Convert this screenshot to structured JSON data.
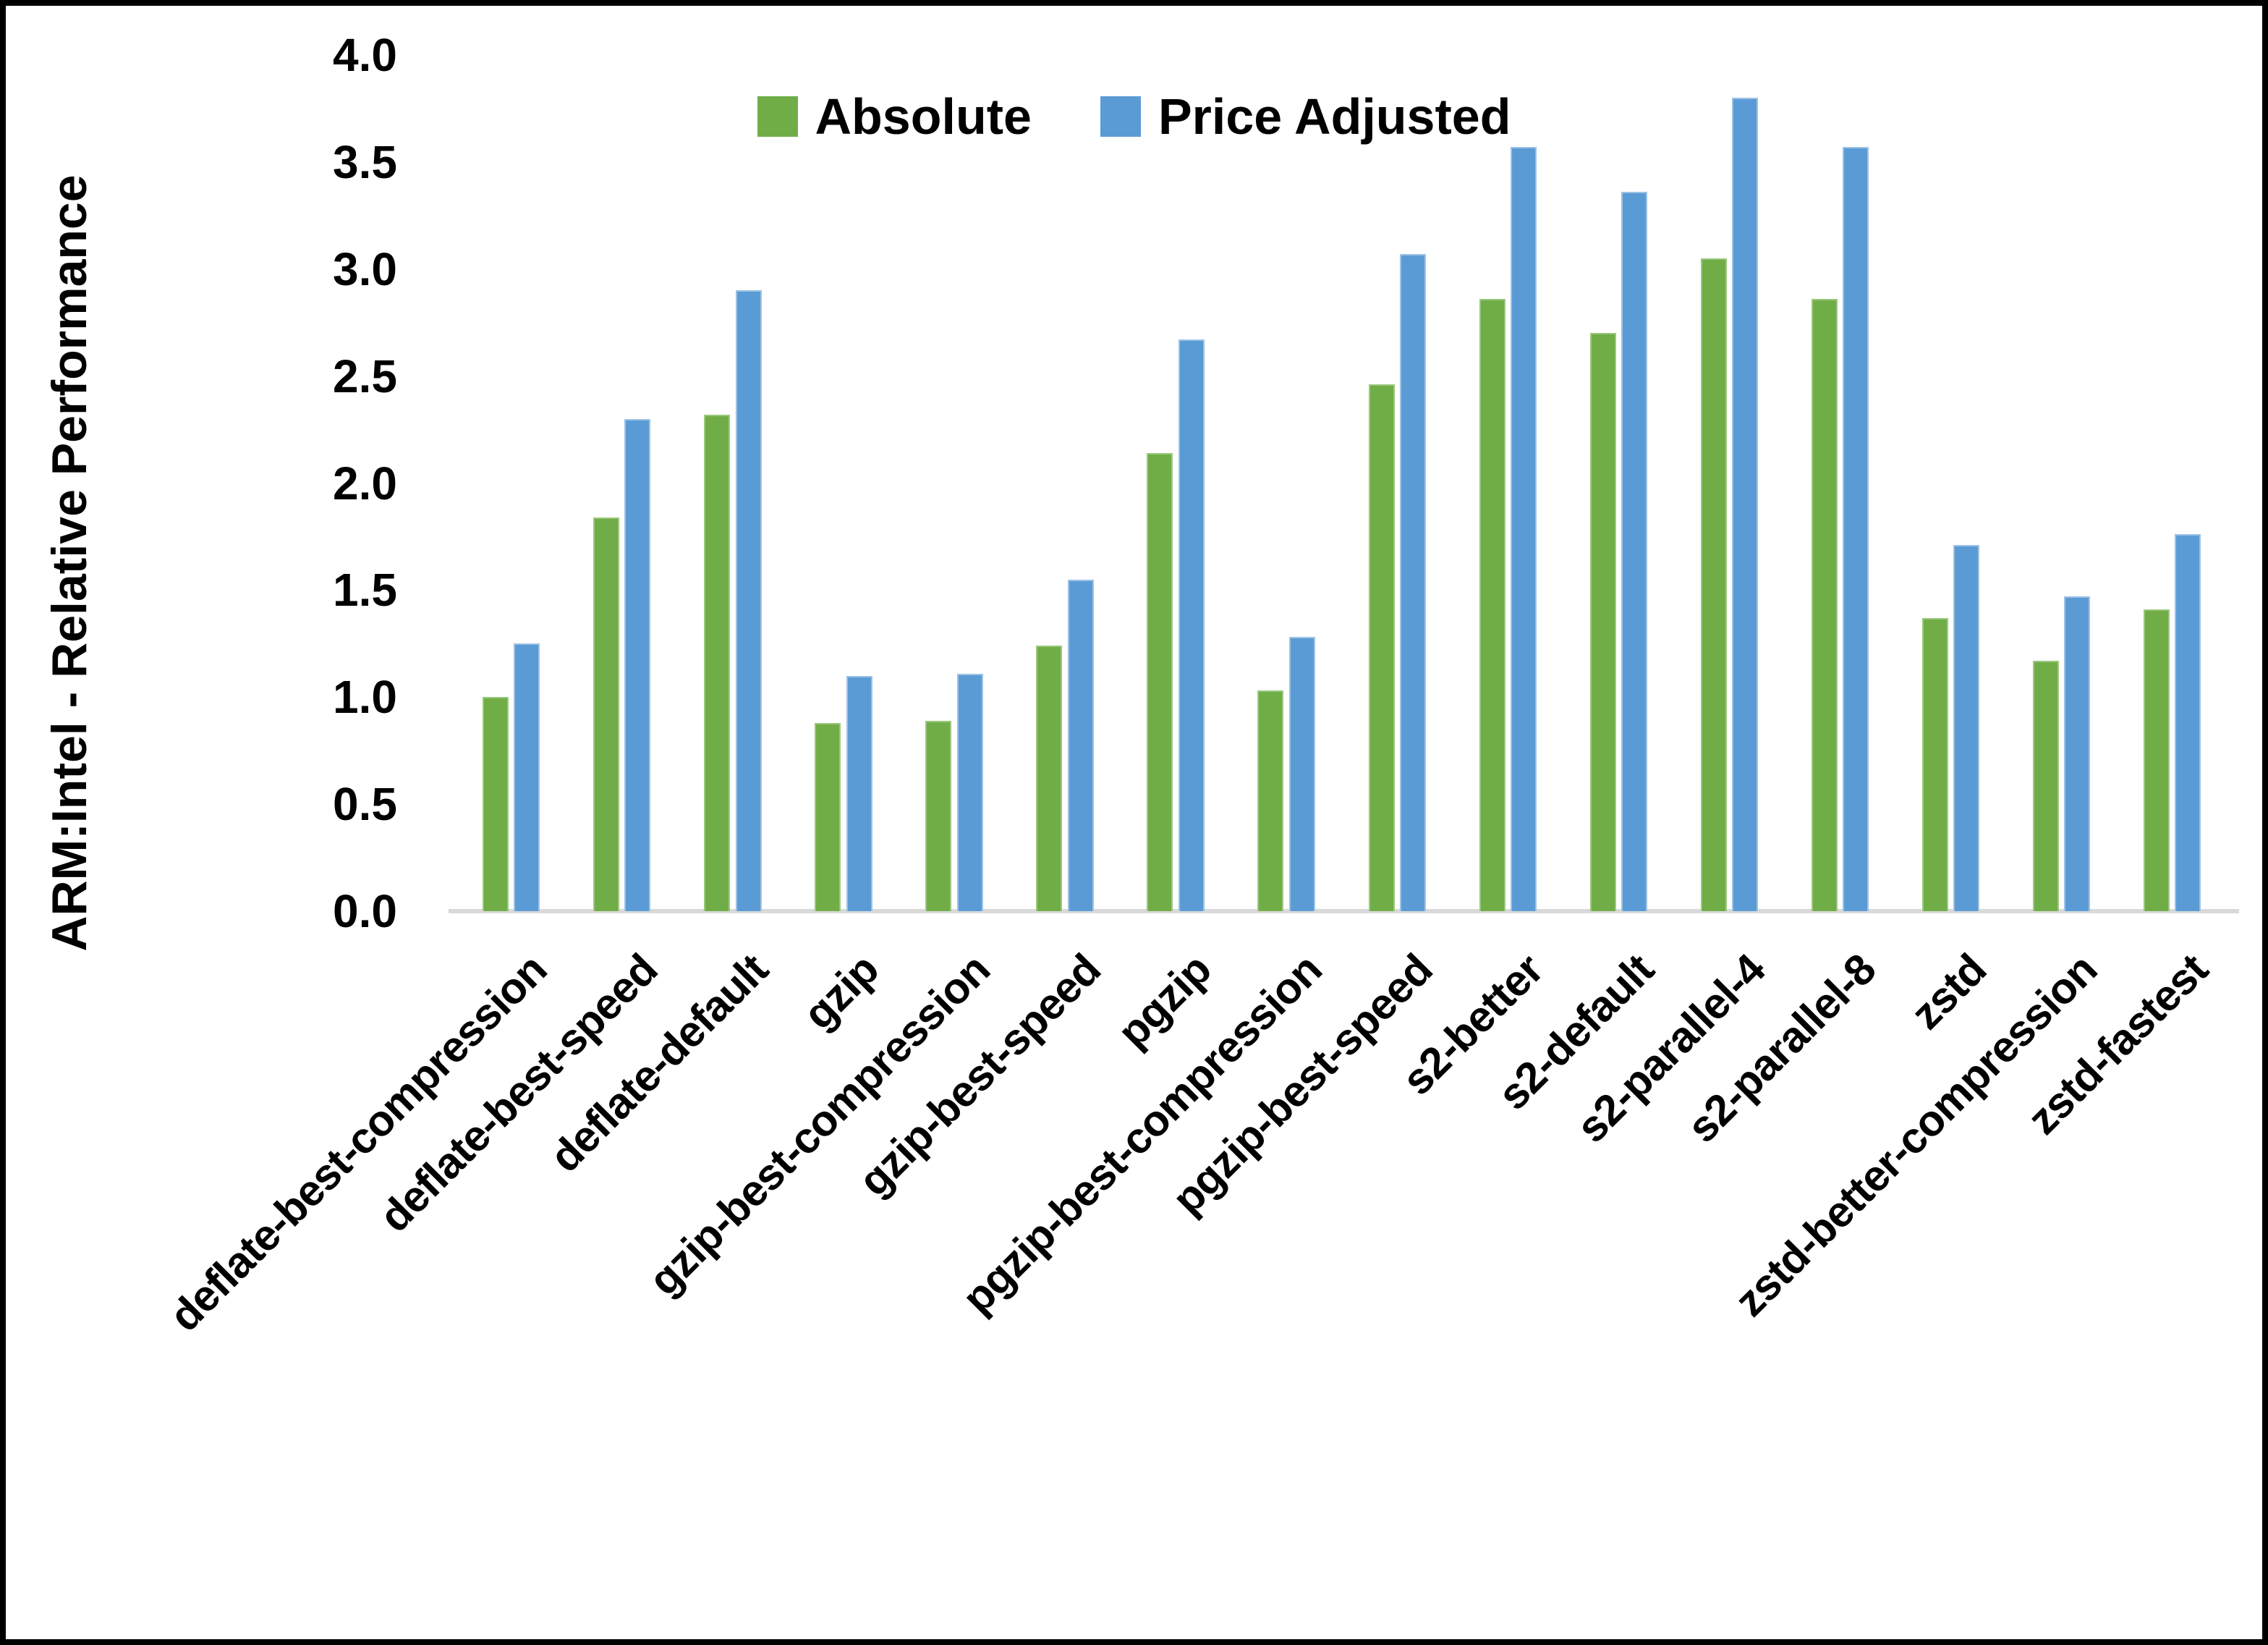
{
  "chart_data": {
    "type": "bar",
    "title": "",
    "xlabel": "",
    "ylabel": "ARM:Intel - Relative Performance",
    "ylim": [
      0.0,
      4.0
    ],
    "yticks": [
      "0.0",
      "0.5",
      "1.0",
      "1.5",
      "2.0",
      "2.5",
      "3.0",
      "3.5",
      "4.0"
    ],
    "grid": false,
    "legend_position": "top-center",
    "axis_line_color": "#d9d9d9",
    "categories": [
      "deflate-best-compression",
      "deflate-best-speed",
      "deflate-default",
      "gzip",
      "gzip-best-compression",
      "gzip-best-speed",
      "pgzip",
      "pgzip-best-compression",
      "pgzip-best-speed",
      "s2-better",
      "s2-default",
      "s2-parallel-4",
      "s2-parallel-8",
      "zstd",
      "zstd-better-compression",
      "zstd-fastest"
    ],
    "series": [
      {
        "name": "Absolute",
        "color": "#70AD47",
        "values": [
          1.0,
          1.84,
          2.32,
          0.88,
          0.89,
          1.24,
          2.14,
          1.03,
          2.46,
          2.86,
          2.7,
          3.05,
          2.86,
          1.37,
          1.17,
          1.41
        ]
      },
      {
        "name": "Price Adjusted",
        "color": "#5B9BD5",
        "values": [
          1.25,
          2.3,
          2.9,
          1.1,
          1.11,
          1.55,
          2.67,
          1.28,
          3.07,
          3.57,
          3.36,
          3.8,
          3.57,
          1.71,
          1.47,
          1.76
        ]
      }
    ]
  }
}
